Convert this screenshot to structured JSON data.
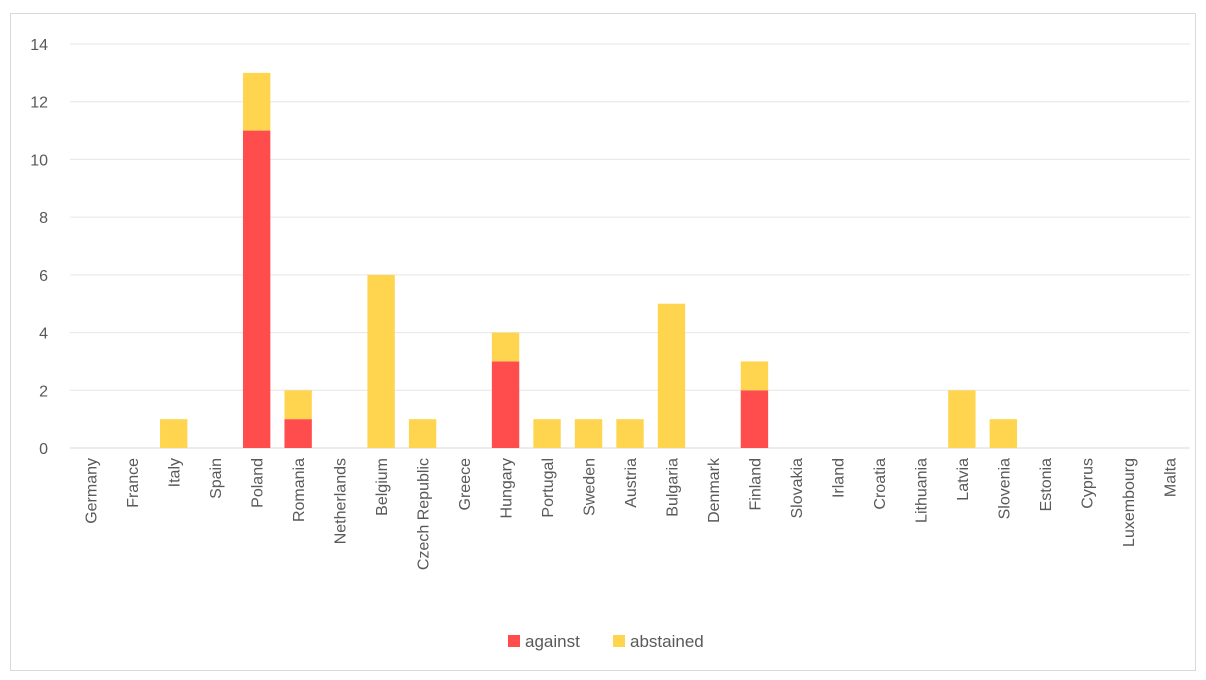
{
  "chart_data": {
    "type": "bar",
    "stacked": true,
    "categories": [
      "Germany",
      "France",
      "Italy",
      "Spain",
      "Poland",
      "Romania",
      "Netherlands",
      "Belgium",
      "Czech Republic",
      "Greece",
      "Hungary",
      "Portugal",
      "Sweden",
      "Austria",
      "Bulgaria",
      "Denmark",
      "Finland",
      "Slovakia",
      "Irland",
      "Croatia",
      "Lithuania",
      "Latvia",
      "Slovenia",
      "Estonia",
      "Cyprus",
      "Luxembourg",
      "Malta"
    ],
    "series": [
      {
        "name": "against",
        "color": "#ff4d4d",
        "values": [
          0,
          0,
          0,
          0,
          11,
          1,
          0,
          0,
          0,
          0,
          3,
          0,
          0,
          0,
          0,
          0,
          2,
          0,
          0,
          0,
          0,
          0,
          0,
          0,
          0,
          0,
          0
        ]
      },
      {
        "name": "abstained",
        "color": "#ffd54f",
        "values": [
          0,
          0,
          1,
          0,
          2,
          1,
          0,
          6,
          1,
          0,
          1,
          1,
          1,
          1,
          5,
          0,
          1,
          0,
          0,
          0,
          0,
          2,
          1,
          0,
          0,
          0,
          0
        ]
      }
    ],
    "yticks": [
      "0",
      "2",
      "4",
      "6",
      "8",
      "10",
      "12",
      "14"
    ],
    "ylim": [
      0,
      14
    ],
    "grid": true,
    "legend_position": "bottom"
  }
}
